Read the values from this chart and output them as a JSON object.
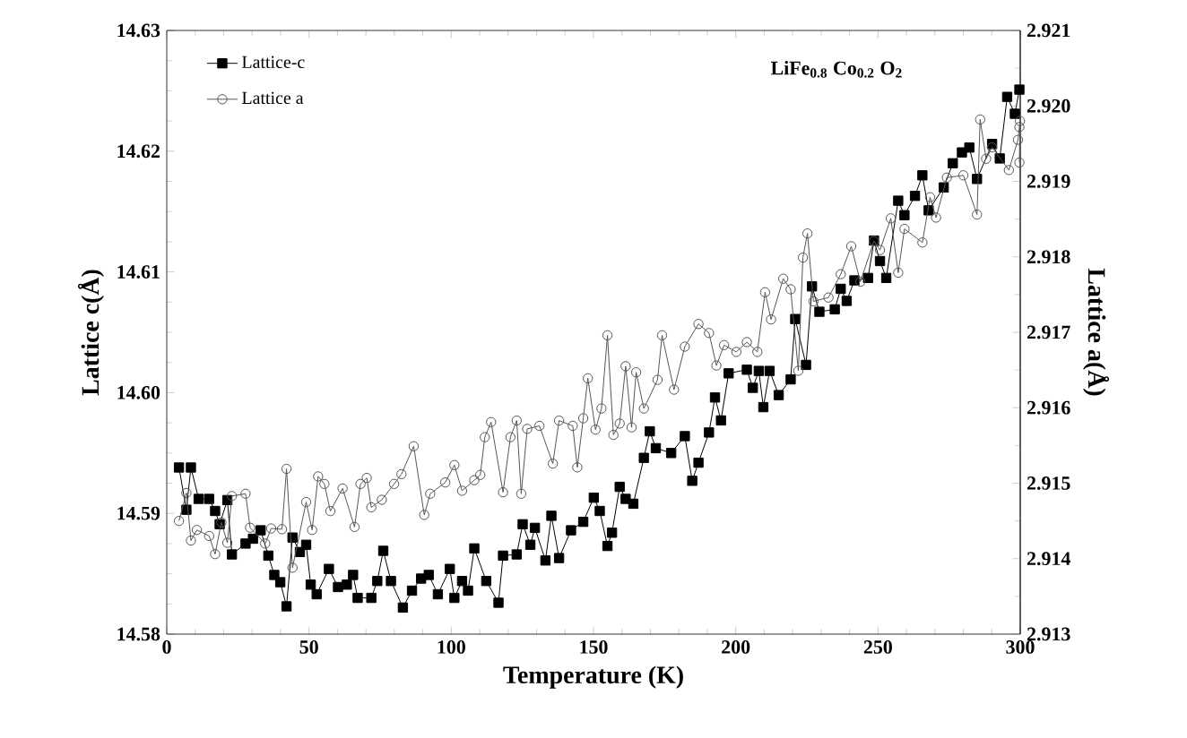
{
  "chart_data": {
    "type": "line",
    "xlabel": "Temperature (K)",
    "ylabel": "Lattice c(Å)",
    "y2label": "Lattice a(Å)",
    "annotations": [
      "LiFe$_{0.8}$ Co$_{0.2}$ O$_{2}$"
    ],
    "xlim": [
      0,
      300
    ],
    "xticks": [
      0,
      50,
      100,
      150,
      200,
      250,
      300
    ],
    "ylim": [
      14.58,
      14.63
    ],
    "yticks": [
      14.58,
      14.59,
      {
        "value": 14.6,
        "label": "14.60"
      },
      14.61,
      14.62,
      14.63
    ],
    "y2lim": [
      2.913,
      2.921
    ],
    "y2ticks": [
      2.913,
      2.914,
      2.915,
      2.916,
      2.917,
      2.918,
      2.919,
      {
        "value": 2.92,
        "label": "2.920"
      },
      2.921
    ],
    "legend": "top left",
    "grid": false,
    "series": [
      {
        "name": "Lattice-c",
        "color": "#000000",
        "marker": "square",
        "axis": "y",
        "x": [
          4.3,
          6.9,
          8.5,
          11.2,
          14.9,
          17.0,
          18.6,
          21.3,
          22.9,
          27.7,
          30.3,
          33.0,
          35.7,
          37.8,
          39.9,
          42.1,
          44.2,
          46.8,
          49.0,
          50.6,
          52.7,
          57.0,
          60.2,
          63.3,
          65.5,
          67.1,
          71.9,
          74.0,
          76.1,
          78.8,
          83.0,
          86.2,
          89.4,
          92.1,
          95.3,
          99.5,
          101.1,
          103.8,
          105.9,
          108.1,
          112.3,
          116.6,
          118.2,
          123.0,
          125.1,
          127.8,
          129.4,
          133.1,
          135.2,
          137.9,
          142.1,
          146.4,
          150.1,
          152.2,
          154.9,
          156.5,
          159.2,
          161.3,
          164.0,
          167.7,
          169.8,
          171.9,
          177.3,
          182.1,
          184.7,
          186.9,
          190.6,
          192.7,
          194.8,
          197.5,
          203.9,
          206.0,
          208.1,
          209.7,
          211.9,
          215.1,
          219.3,
          220.9,
          224.7,
          226.8,
          229.4,
          234.8,
          236.9,
          239.0,
          241.7,
          246.5,
          248.6,
          250.7,
          252.9,
          257.1,
          259.3,
          263.0,
          265.6,
          267.8,
          273.1,
          276.3,
          279.5,
          282.1,
          284.8,
          290.1,
          292.8,
          295.4,
          298.1,
          299.7
        ],
        "values": [
          14.5938,
          14.5903,
          14.5938,
          14.5912,
          14.5912,
          14.5902,
          14.5891,
          14.5911,
          14.5866,
          14.5875,
          14.5879,
          14.5886,
          14.5865,
          14.5849,
          14.5843,
          14.5823,
          14.588,
          14.5868,
          14.5874,
          14.5841,
          14.5833,
          14.5854,
          14.5839,
          14.5841,
          14.5849,
          14.583,
          14.583,
          14.5844,
          14.5869,
          14.5844,
          14.5822,
          14.5836,
          14.5846,
          14.5849,
          14.5833,
          14.5854,
          14.583,
          14.5844,
          14.5836,
          14.5871,
          14.5844,
          14.5826,
          14.5865,
          14.5866,
          14.5891,
          14.5874,
          14.5888,
          14.5861,
          14.5898,
          14.5863,
          14.5886,
          14.5893,
          14.5913,
          14.5902,
          14.5873,
          14.5884,
          14.5922,
          14.5912,
          14.5908,
          14.5946,
          14.5968,
          14.5954,
          14.595,
          14.5964,
          14.5927,
          14.5942,
          14.5967,
          14.5996,
          14.5977,
          14.6016,
          14.6019,
          14.6004,
          14.6018,
          14.5988,
          14.6018,
          14.5998,
          14.6011,
          14.6061,
          14.6023,
          14.6088,
          14.6067,
          14.6069,
          14.6086,
          14.6076,
          14.6093,
          14.6095,
          14.6126,
          14.6109,
          14.6095,
          14.6159,
          14.6147,
          14.6163,
          14.618,
          14.6151,
          14.617,
          14.619,
          14.6199,
          14.6203,
          14.6177,
          14.6206,
          14.6194,
          14.6245,
          14.6231,
          14.6251
        ]
      },
      {
        "name": "Lattice a",
        "color": "#555555",
        "marker": "circle",
        "axis": "y2",
        "x": [
          4.3,
          6.9,
          8.5,
          10.6,
          14.9,
          17.0,
          19.2,
          21.3,
          22.9,
          27.7,
          29.3,
          34.6,
          36.7,
          40.5,
          42.1,
          44.2,
          49.0,
          51.1,
          53.2,
          55.4,
          57.5,
          61.8,
          66.0,
          68.1,
          70.3,
          71.9,
          75.6,
          79.9,
          82.5,
          86.8,
          90.5,
          92.6,
          97.9,
          101.1,
          103.8,
          108.1,
          110.2,
          111.8,
          114.0,
          118.2,
          120.8,
          123.0,
          124.6,
          126.7,
          131.0,
          135.7,
          137.9,
          142.7,
          144.3,
          146.4,
          148.0,
          150.7,
          152.8,
          154.9,
          157.0,
          159.2,
          161.3,
          163.4,
          165.0,
          167.7,
          172.5,
          174.1,
          178.3,
          182.1,
          186.9,
          190.6,
          193.2,
          195.9,
          200.2,
          203.9,
          207.6,
          210.3,
          212.4,
          216.7,
          219.3,
          222.0,
          223.6,
          225.2,
          227.3,
          232.6,
          236.9,
          240.6,
          243.8,
          248.6,
          250.7,
          254.5,
          257.1,
          259.3,
          265.6,
          268.3,
          270.4,
          274.2,
          280.0,
          284.8,
          285.9,
          288.0,
          290.1,
          296.0,
          299.2,
          299.7,
          299.9,
          299.7
        ],
        "values": [
          2.9145,
          2.91487,
          2.91424,
          2.91438,
          2.9143,
          2.91406,
          2.91448,
          2.91421,
          2.91483,
          2.91486,
          2.91441,
          2.9142,
          2.9144,
          2.91439,
          2.91519,
          2.91388,
          2.91475,
          2.91438,
          2.91509,
          2.91499,
          2.91463,
          2.91493,
          2.91442,
          2.91499,
          2.91507,
          2.91468,
          2.91478,
          2.91499,
          2.91512,
          2.91549,
          2.91458,
          2.91486,
          2.91501,
          2.91524,
          2.9149,
          2.91504,
          2.91511,
          2.91561,
          2.91581,
          2.91488,
          2.91561,
          2.91583,
          2.91486,
          2.91572,
          2.91576,
          2.91526,
          2.91583,
          2.91576,
          2.91521,
          2.91586,
          2.91639,
          2.91571,
          2.91599,
          2.91696,
          2.91564,
          2.91579,
          2.91655,
          2.91574,
          2.91647,
          2.91599,
          2.91637,
          2.91696,
          2.91624,
          2.91681,
          2.91711,
          2.91699,
          2.91656,
          2.91683,
          2.91674,
          2.91687,
          2.91674,
          2.91753,
          2.91717,
          2.91771,
          2.91757,
          2.91649,
          2.91799,
          2.91831,
          2.91741,
          2.91746,
          2.91777,
          2.91814,
          2.91767,
          2.91821,
          2.91809,
          2.91851,
          2.91779,
          2.91837,
          2.91819,
          2.91879,
          2.91852,
          2.91905,
          2.91908,
          2.91856,
          2.91982,
          2.9193,
          2.91945,
          2.91915,
          2.91955,
          2.91972,
          2.9198,
          2.91925
        ]
      }
    ]
  }
}
